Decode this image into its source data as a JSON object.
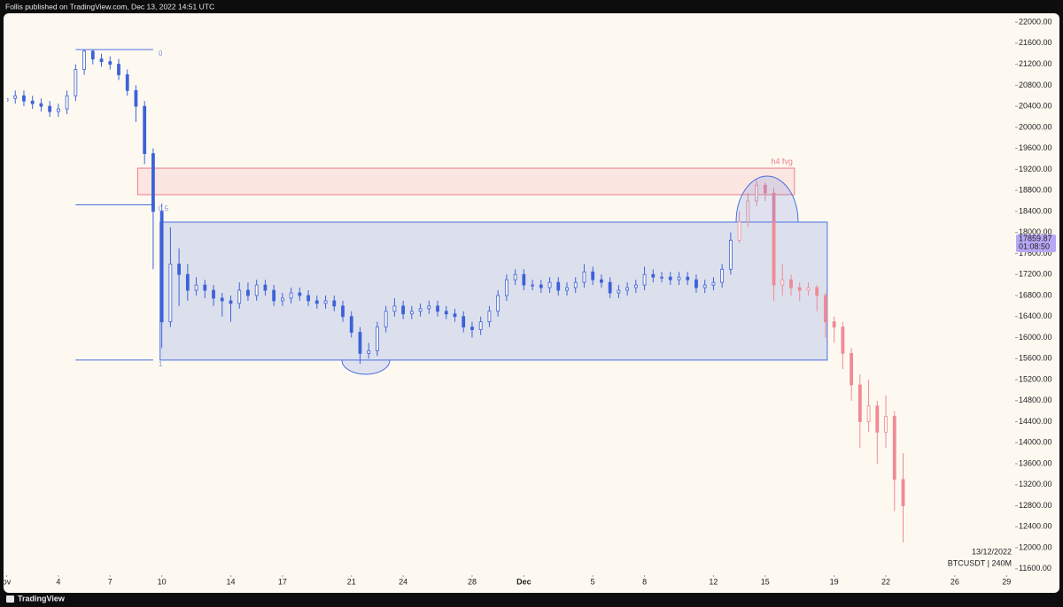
{
  "header": "Follis published on TradingView.com, Dec 13, 2022 14:51 UTC",
  "footer": "TradingView",
  "chart_data": {
    "type": "candlestick",
    "date_label": "13/12/2022",
    "symbol_label": "BTCUSDT | 240M",
    "last_price": 17859.87,
    "countdown": "01:08:50",
    "xlim": [
      0,
      58.5
    ],
    "ylim": [
      11480,
      22170
    ],
    "xticks": [
      {
        "value": 0,
        "label": "ov"
      },
      {
        "value": 3,
        "label": "4"
      },
      {
        "value": 6,
        "label": "7"
      },
      {
        "value": 9,
        "label": "10"
      },
      {
        "value": 13,
        "label": "14"
      },
      {
        "value": 16,
        "label": "17"
      },
      {
        "value": 20,
        "label": "21"
      },
      {
        "value": 23,
        "label": "24"
      },
      {
        "value": 27,
        "label": "28"
      },
      {
        "value": 30,
        "label": "Dec"
      },
      {
        "value": 34,
        "label": "5"
      },
      {
        "value": 37,
        "label": "8"
      },
      {
        "value": 41,
        "label": "12"
      },
      {
        "value": 44,
        "label": "15"
      },
      {
        "value": 48,
        "label": "19"
      },
      {
        "value": 51,
        "label": "22"
      },
      {
        "value": 55,
        "label": "26"
      },
      {
        "value": 58,
        "label": "29"
      }
    ],
    "yticks": [
      {
        "value": 11600,
        "label": "11600.00"
      },
      {
        "value": 12000,
        "label": "12000.00"
      },
      {
        "value": 12400,
        "label": "12400.00"
      },
      {
        "value": 12800,
        "label": "12800.00"
      },
      {
        "value": 13200,
        "label": "13200.00"
      },
      {
        "value": 13600,
        "label": "13600.00"
      },
      {
        "value": 14000,
        "label": "14000.00"
      },
      {
        "value": 14400,
        "label": "14400.00"
      },
      {
        "value": 14800,
        "label": "14800.00"
      },
      {
        "value": 15200,
        "label": "15200.00"
      },
      {
        "value": 15600,
        "label": "15600.00"
      },
      {
        "value": 16000,
        "label": "16000.00"
      },
      {
        "value": 16400,
        "label": "16400.00"
      },
      {
        "value": 16800,
        "label": "16800.00"
      },
      {
        "value": 17200,
        "label": "17200.00"
      },
      {
        "value": 17600,
        "label": "17600.00"
      },
      {
        "value": 18000,
        "label": "18000.00"
      },
      {
        "value": 18400,
        "label": "18400.00"
      },
      {
        "value": 18800,
        "label": "18800.00"
      },
      {
        "value": 19200,
        "label": "19200.00"
      },
      {
        "value": 19600,
        "label": "19600.00"
      },
      {
        "value": 20000,
        "label": "20000.00"
      },
      {
        "value": 20400,
        "label": "20400.00"
      },
      {
        "value": 20800,
        "label": "20800.00"
      },
      {
        "value": 21200,
        "label": "21200.00"
      },
      {
        "value": 21600,
        "label": "21600.00"
      },
      {
        "value": 22000,
        "label": "22000.00"
      }
    ],
    "zones": [
      {
        "name": "h4 fvg",
        "color": "#ef7c86",
        "x": [
          7.6,
          45.7
        ],
        "price": [
          18719,
          19223
        ]
      },
      {
        "color": "#4a6fe0",
        "x": [
          8.9,
          47.6
        ],
        "price": [
          15572,
          18197
        ]
      }
    ],
    "fib": {
      "levels": [
        0,
        0.5,
        1
      ],
      "high": 21480,
      "low": 15572,
      "x": [
        4,
        8.5
      ]
    },
    "series": [
      {
        "color": "#3d62d8",
        "x": [
          0,
          0.5,
          1,
          1.5,
          2,
          2.5,
          3,
          3.5,
          4,
          4.5,
          5,
          5.5,
          6,
          6.5,
          7,
          7.5,
          8,
          8.5,
          9,
          9.5,
          10,
          10.5,
          11,
          11.5,
          12,
          12.5,
          13,
          13.5,
          14,
          14.5,
          15,
          15.5,
          16,
          16.5,
          17,
          17.5,
          18,
          18.5,
          19,
          19.5,
          20,
          20.5,
          21,
          21.5,
          22,
          22.5,
          23,
          23.5,
          24,
          24.5,
          25,
          25.5,
          26,
          26.5,
          27,
          27.5,
          28,
          28.5,
          29,
          29.5,
          30,
          30.5,
          31,
          31.5,
          32,
          32.5,
          33,
          33.5,
          34,
          34.5,
          35,
          35.5,
          36,
          36.5,
          37,
          37.5,
          38,
          38.5,
          39,
          39.5,
          40,
          40.5,
          41,
          41.5,
          42
        ],
        "open": [
          20500,
          20550,
          20600,
          20500,
          20450,
          20400,
          20300,
          20350,
          20600,
          21100,
          21450,
          21300,
          21250,
          21200,
          21000,
          20700,
          20400,
          19500,
          18400,
          16300,
          17400,
          17200,
          16900,
          17000,
          16900,
          16750,
          16700,
          16650,
          16900,
          16800,
          17000,
          16900,
          16700,
          16750,
          16850,
          16800,
          16700,
          16650,
          16700,
          16600,
          16400,
          16100,
          15700,
          15750,
          16200,
          16500,
          16600,
          16450,
          16500,
          16550,
          16600,
          16500,
          16450,
          16400,
          16200,
          16150,
          16300,
          16500,
          16800,
          17100,
          17200,
          17000,
          17000,
          16950,
          17050,
          16900,
          16950,
          17050,
          17250,
          17100,
          17050,
          16850,
          16900,
          16950,
          17000,
          17200,
          17150,
          17150,
          17100,
          17150,
          17100,
          16950,
          17000,
          17050,
          17300
        ],
        "close": [
          20550,
          20600,
          20500,
          20450,
          20400,
          20300,
          20350,
          20600,
          21100,
          21450,
          21300,
          21250,
          21200,
          21000,
          20700,
          20400,
          19500,
          18400,
          16300,
          17400,
          17200,
          16900,
          17000,
          16900,
          16750,
          16700,
          16650,
          16900,
          16800,
          17000,
          16900,
          16700,
          16750,
          16850,
          16800,
          16700,
          16650,
          16700,
          16600,
          16400,
          16100,
          15700,
          15750,
          16200,
          16500,
          16600,
          16450,
          16500,
          16550,
          16600,
          16500,
          16450,
          16400,
          16200,
          16150,
          16300,
          16500,
          16800,
          17100,
          17200,
          17000,
          17000,
          16950,
          17050,
          16900,
          16950,
          17050,
          17250,
          17100,
          17050,
          16850,
          16900,
          16950,
          17000,
          17200,
          17150,
          17150,
          17100,
          17150,
          17100,
          16950,
          17000,
          17050,
          17300,
          17850
        ],
        "high": [
          20650,
          20700,
          20700,
          20600,
          20550,
          20500,
          20450,
          20700,
          21200,
          21480,
          21470,
          21400,
          21350,
          21300,
          21100,
          20800,
          20500,
          19600,
          18550,
          18100,
          17700,
          17400,
          17150,
          17100,
          17000,
          16850,
          16800,
          17050,
          17050,
          17100,
          17100,
          17000,
          16850,
          16950,
          16950,
          16900,
          16800,
          16800,
          16800,
          16700,
          16500,
          16200,
          15900,
          16300,
          16600,
          16750,
          16700,
          16600,
          16650,
          16700,
          16700,
          16600,
          16550,
          16500,
          16300,
          16400,
          16600,
          16900,
          17200,
          17300,
          17300,
          17100,
          17100,
          17150,
          17150,
          17050,
          17150,
          17400,
          17350,
          17200,
          17150,
          17000,
          17050,
          17100,
          17350,
          17300,
          17250,
          17250,
          17250,
          17250,
          17200,
          17100,
          17150,
          17400,
          18000
        ],
        "low": [
          20400,
          20450,
          20400,
          20350,
          20300,
          20200,
          20200,
          20250,
          20500,
          21000,
          21200,
          21150,
          21100,
          20900,
          20600,
          20100,
          19300,
          17300,
          15800,
          16200,
          16600,
          16700,
          16800,
          16750,
          16600,
          16400,
          16300,
          16550,
          16700,
          16700,
          16800,
          16600,
          16600,
          16650,
          16700,
          16600,
          16550,
          16550,
          16500,
          16300,
          16000,
          15500,
          15600,
          15650,
          16100,
          16400,
          16350,
          16350,
          16400,
          16450,
          16400,
          16350,
          16300,
          16100,
          16000,
          16050,
          16200,
          16400,
          16700,
          17000,
          16900,
          16900,
          16850,
          16850,
          16800,
          16800,
          16850,
          16950,
          17000,
          16950,
          16750,
          16750,
          16800,
          16850,
          16900,
          17050,
          17050,
          17000,
          17000,
          17000,
          16850,
          16850,
          16900,
          16950,
          17200
        ]
      },
      {
        "color": "#f08a95",
        "x": [
          42.5,
          43,
          43.5,
          44,
          44.5,
          45,
          45.5,
          46,
          46.5,
          47,
          47.5,
          48,
          48.5,
          49,
          49.5,
          50,
          50.5,
          51,
          51.5,
          52
        ],
        "open": [
          17850,
          18200,
          18600,
          18900,
          18750,
          17000,
          17100,
          16950,
          16900,
          16950,
          16800,
          16300,
          16200,
          15700,
          15100,
          14400,
          14700,
          14200,
          14500,
          13300
        ],
        "close": [
          18200,
          18600,
          18900,
          18750,
          17000,
          17100,
          16950,
          16900,
          16950,
          16800,
          16300,
          16200,
          15700,
          15100,
          14400,
          14700,
          14200,
          14500,
          13300,
          12800
        ],
        "high": [
          18400,
          18750,
          19000,
          18950,
          18850,
          17400,
          17200,
          17050,
          17050,
          17000,
          16850,
          16400,
          16300,
          15800,
          15300,
          15200,
          14800,
          14900,
          14600,
          13800
        ],
        "low": [
          17800,
          18100,
          18500,
          18600,
          16700,
          16800,
          16800,
          16700,
          16800,
          16500,
          16000,
          15900,
          15400,
          14800,
          13900,
          14200,
          13600,
          13900,
          12700,
          12100
        ]
      }
    ]
  }
}
